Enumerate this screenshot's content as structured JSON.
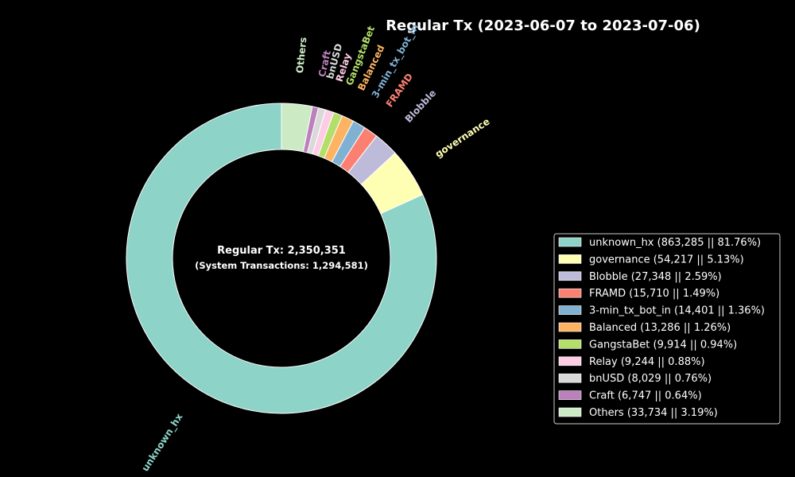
{
  "chart_data": {
    "type": "pie",
    "title": "Regular Tx (2023-06-07 to 2023-07-06)",
    "center_text": "Regular Tx: 2,350,351",
    "center_subtext": "(System Transactions: 1,294,581)",
    "legend_position": "right",
    "slices": [
      {
        "name": "unknown_hx",
        "value": 863285,
        "percent": 81.76,
        "color": "#8dd3c7",
        "legend": "unknown_hx (863,285 || 81.76%)"
      },
      {
        "name": "governance",
        "value": 54217,
        "percent": 5.13,
        "color": "#ffffb3",
        "legend": "governance (54,217 || 5.13%)"
      },
      {
        "name": "Blobble",
        "value": 27348,
        "percent": 2.59,
        "color": "#bebada",
        "legend": "Blobble (27,348 || 2.59%)"
      },
      {
        "name": "FRAMD",
        "value": 15710,
        "percent": 1.49,
        "color": "#fb8072",
        "legend": "FRAMD (15,710 || 1.49%)"
      },
      {
        "name": "3-min_tx_bot_in",
        "value": 14401,
        "percent": 1.36,
        "color": "#80b1d3",
        "legend": "3-min_tx_bot_in (14,401 || 1.36%)"
      },
      {
        "name": "Balanced",
        "value": 13286,
        "percent": 1.26,
        "color": "#fdb462",
        "legend": "Balanced (13,286 || 1.26%)"
      },
      {
        "name": "GangstaBet",
        "value": 9914,
        "percent": 0.94,
        "color": "#b3de69",
        "legend": "GangstaBet (9,914 || 0.94%)"
      },
      {
        "name": "Relay",
        "value": 9244,
        "percent": 0.88,
        "color": "#fccde5",
        "legend": "Relay (9,244 || 0.88%)"
      },
      {
        "name": "bnUSD",
        "value": 8029,
        "percent": 0.76,
        "color": "#d9d9d9",
        "legend": "bnUSD (8,029 || 0.76%)"
      },
      {
        "name": "Craft",
        "value": 6747,
        "percent": 0.64,
        "color": "#bc80bd",
        "legend": "Craft (6,747 || 0.64%)"
      },
      {
        "name": "Others",
        "value": 33734,
        "percent": 3.19,
        "color": "#ccebc5",
        "legend": "Others (33,734 || 3.19%)"
      }
    ]
  }
}
